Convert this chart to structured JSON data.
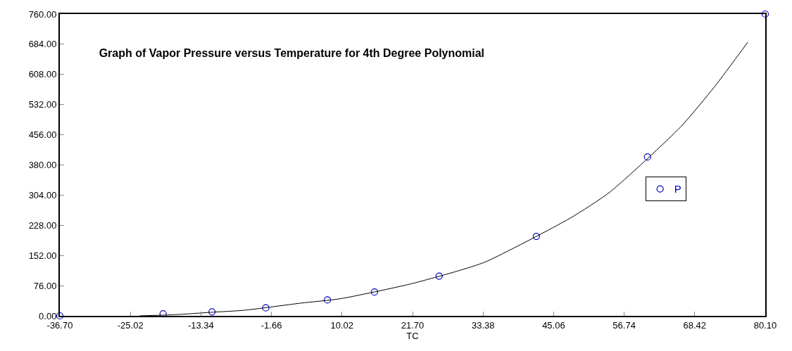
{
  "chart_data": {
    "type": "scatter",
    "title": "Graph of Vapor Pressure versus Temperature for 4th Degree Polynomial",
    "xlabel": "TC",
    "series": [
      {
        "name": "P",
        "color": "#0000c0",
        "marker": "circle",
        "x": [
          -36.7,
          -19.6,
          -11.5,
          -2.6,
          7.6,
          15.4,
          26.1,
          42.2,
          60.6,
          80.1
        ],
        "values": [
          0,
          5,
          10,
          20,
          40,
          60,
          100,
          200,
          400,
          760
        ]
      },
      {
        "type": "line",
        "color": "#000000",
        "line_style": "solid",
        "x": [
          -23.5,
          -17.5,
          -11.6,
          -6.2,
          3.2,
          9.7,
          21.3,
          29.2,
          33.8,
          47.8,
          54.4,
          66.1,
          71.7,
          77.2
        ],
        "values": [
          0,
          3,
          9,
          14,
          32,
          43,
          80,
          113,
          136,
          246,
          312,
          476,
          577,
          689
        ]
      }
    ],
    "xlim": [
      -36.7,
      80.1
    ],
    "xticks": [
      {
        "value": -36.7,
        "label": "-36.70"
      },
      {
        "value": -25.02,
        "label": "-25.02"
      },
      {
        "value": -13.34,
        "label": "-13.34"
      },
      {
        "value": -1.66,
        "label": "-1.66"
      },
      {
        "value": 10.02,
        "label": "10.02"
      },
      {
        "value": 21.7,
        "label": "21.70"
      },
      {
        "value": 33.38,
        "label": "33.38"
      },
      {
        "value": 45.06,
        "label": "45.06"
      },
      {
        "value": 56.74,
        "label": "56.74"
      },
      {
        "value": 68.42,
        "label": "68.42"
      },
      {
        "value": 80.1,
        "label": "80.10"
      }
    ],
    "ylim": [
      0,
      760
    ],
    "yticks": [
      {
        "value": 0,
        "label": "0.00"
      },
      {
        "value": 76,
        "label": "76.00"
      },
      {
        "value": 152,
        "label": "152.00"
      },
      {
        "value": 228,
        "label": "228.00"
      },
      {
        "value": 304,
        "label": "304.00"
      },
      {
        "value": 380,
        "label": "380.00"
      },
      {
        "value": 456,
        "label": "456.00"
      },
      {
        "value": 532,
        "label": "532.00"
      },
      {
        "value": 608,
        "label": "608.00"
      },
      {
        "value": 684,
        "label": "684.00"
      },
      {
        "value": 760,
        "label": "760.00"
      }
    ],
    "legend": "right"
  }
}
